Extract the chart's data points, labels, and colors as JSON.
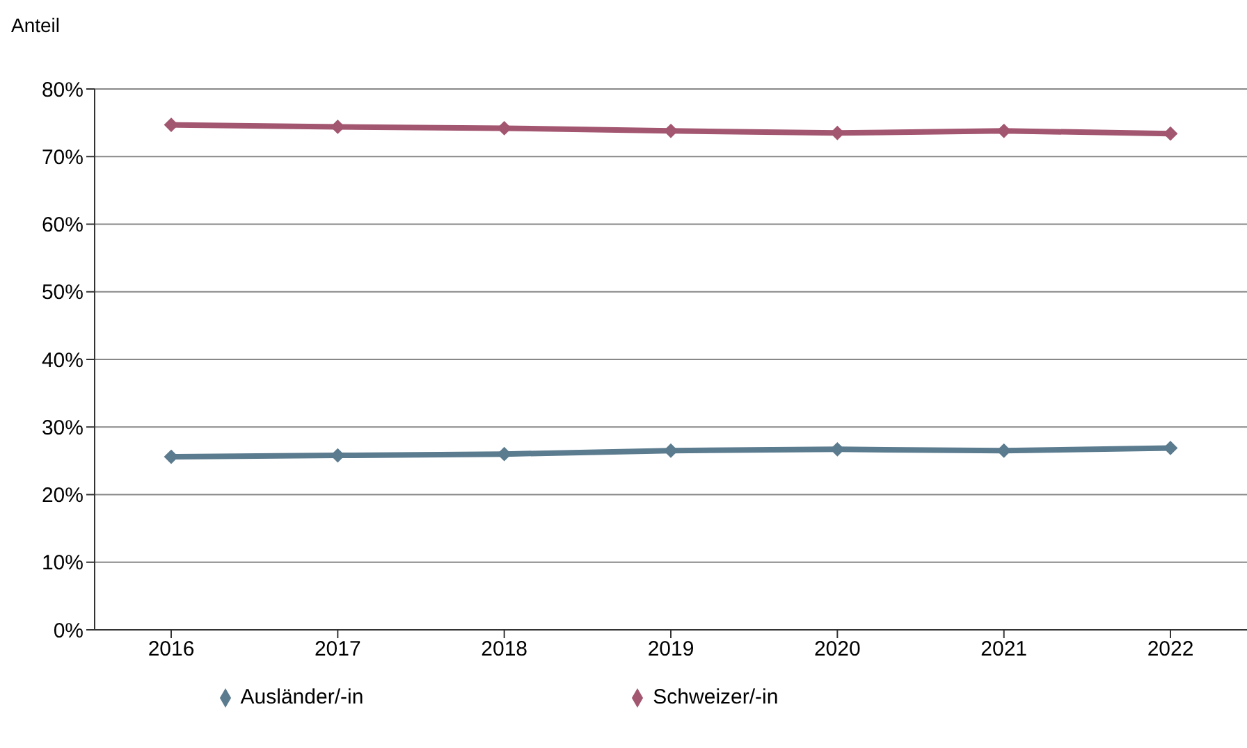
{
  "chart_data": {
    "type": "line",
    "ylabel": "Anteil",
    "categories": [
      "2016",
      "2017",
      "2018",
      "2019",
      "2020",
      "2021",
      "2022"
    ],
    "series": [
      {
        "name": "Ausländer/-in",
        "color": "#5b7b8e",
        "values": [
          25.6,
          25.8,
          26.0,
          26.5,
          26.7,
          26.5,
          26.9
        ]
      },
      {
        "name": "Schweizer/-in",
        "color": "#a3566f",
        "values": [
          74.7,
          74.4,
          74.2,
          73.8,
          73.5,
          73.8,
          73.4
        ]
      }
    ],
    "ylim": [
      0,
      80
    ],
    "yticks": [
      {
        "value": 0,
        "label": "0%"
      },
      {
        "value": 10,
        "label": "10%"
      },
      {
        "value": 20,
        "label": "20%"
      },
      {
        "value": 30,
        "label": "30%"
      },
      {
        "value": 40,
        "label": "40%"
      },
      {
        "value": 50,
        "label": "50%"
      },
      {
        "value": 60,
        "label": "60%"
      },
      {
        "value": 70,
        "label": "70%"
      },
      {
        "value": 80,
        "label": "80%"
      }
    ],
    "grid": "y",
    "legend": "bottom",
    "marker": "diamond"
  }
}
